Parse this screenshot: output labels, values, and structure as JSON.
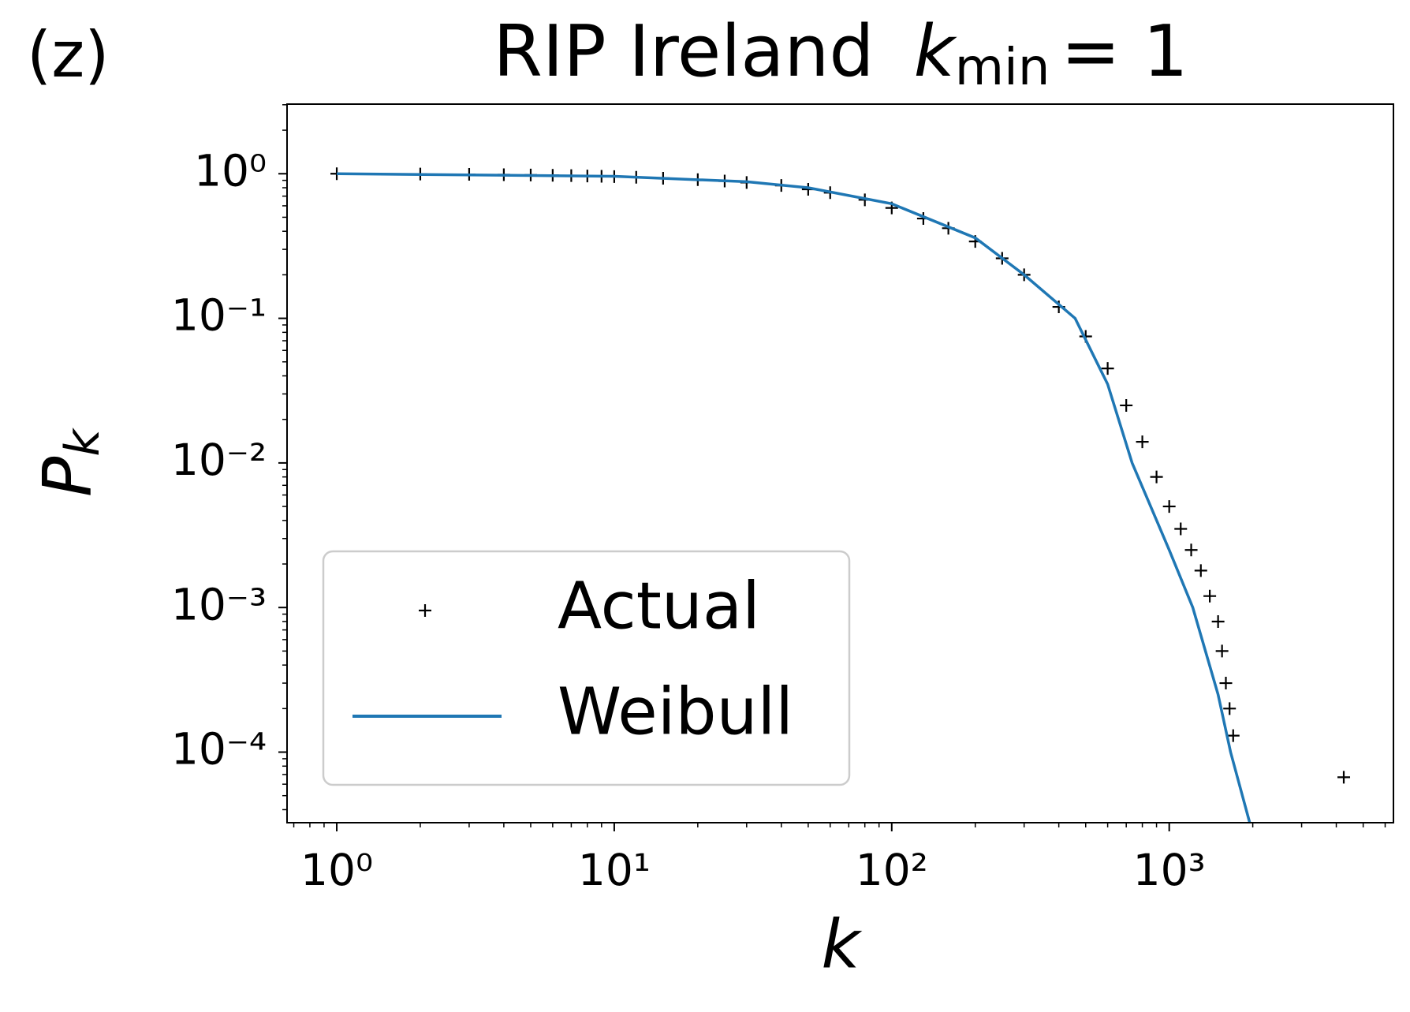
{
  "chart_data": {
    "type": "line",
    "panel_label": "(z)",
    "title": "RIP Ireland",
    "title_param": {
      "symbol": "k",
      "subscript": "min",
      "value": "= 1"
    },
    "xlabel": "k",
    "ylabel": {
      "symbol": "P",
      "subscript": "k"
    },
    "log_x": true,
    "log_y": true,
    "xlim": [
      0.662,
      6427
    ],
    "ylim": [
      3.25e-05,
      3.03
    ],
    "xticks": [
      {
        "value": 1,
        "label": "10⁰"
      },
      {
        "value": 10,
        "label": "10¹"
      },
      {
        "value": 100,
        "label": "10²"
      },
      {
        "value": 1000,
        "label": "10³"
      }
    ],
    "yticks": [
      {
        "value": 1,
        "label": "10⁰"
      },
      {
        "value": 0.1,
        "label": "10⁻¹"
      },
      {
        "value": 0.01,
        "label": "10⁻²"
      },
      {
        "value": 0.001,
        "label": "10⁻³"
      },
      {
        "value": 0.0001,
        "label": "10⁻⁴"
      }
    ],
    "legend": "lower left",
    "series": [
      {
        "name": "Actual",
        "color": "#000000",
        "marker": "+",
        "x": [
          1,
          2,
          3,
          4,
          5,
          6,
          7,
          8,
          9,
          10,
          12,
          15,
          20,
          25,
          30,
          40,
          50,
          60,
          80,
          100,
          130,
          160,
          200,
          250,
          300,
          400,
          500,
          600,
          700,
          800,
          900,
          1000,
          1100,
          1200,
          1300,
          1400,
          1500,
          1550,
          1600,
          1650,
          1700,
          4256
        ],
        "values": [
          1.0,
          0.995,
          0.99,
          0.985,
          0.98,
          0.975,
          0.97,
          0.965,
          0.96,
          0.955,
          0.945,
          0.93,
          0.91,
          0.89,
          0.87,
          0.83,
          0.78,
          0.74,
          0.66,
          0.58,
          0.49,
          0.42,
          0.34,
          0.26,
          0.2,
          0.12,
          0.075,
          0.045,
          0.025,
          0.014,
          0.008,
          0.005,
          0.0035,
          0.0025,
          0.0018,
          0.0012,
          0.0008,
          0.0005,
          0.0003,
          0.0002,
          0.00013,
          6.7e-05
        ]
      },
      {
        "name": "Weibull",
        "color": "#1f77b4",
        "x": [
          1,
          10,
          30,
          50,
          100,
          200,
          300,
          458,
          600,
          735,
          1000,
          1216,
          1500,
          1664,
          1950
        ],
        "values": [
          1.0,
          0.96,
          0.88,
          0.8,
          0.62,
          0.36,
          0.2,
          0.1,
          0.035,
          0.01,
          0.0025,
          0.001,
          0.00025,
          0.0001,
          3.25e-05
        ]
      }
    ]
  }
}
